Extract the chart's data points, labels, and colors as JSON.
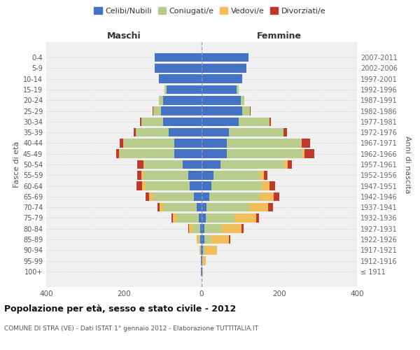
{
  "age_groups": [
    "100+",
    "95-99",
    "90-94",
    "85-89",
    "80-84",
    "75-79",
    "70-74",
    "65-69",
    "60-64",
    "55-59",
    "50-54",
    "45-49",
    "40-44",
    "35-39",
    "30-34",
    "25-29",
    "20-24",
    "15-19",
    "10-14",
    "5-9",
    "0-4"
  ],
  "birth_years": [
    "≤ 1911",
    "1912-1916",
    "1917-1921",
    "1922-1926",
    "1927-1931",
    "1932-1936",
    "1937-1941",
    "1942-1946",
    "1947-1951",
    "1952-1956",
    "1957-1961",
    "1962-1966",
    "1967-1971",
    "1972-1976",
    "1977-1981",
    "1982-1986",
    "1987-1991",
    "1992-1996",
    "1997-2001",
    "2002-2006",
    "2007-2011"
  ],
  "colors": {
    "celibi": "#4472c4",
    "coniugati": "#b8cc8c",
    "vedovi": "#f0be5a",
    "divorziati": "#c0392b"
  },
  "maschi": {
    "celibi": [
      1,
      1,
      2,
      3,
      4,
      8,
      12,
      20,
      30,
      35,
      48,
      70,
      70,
      85,
      100,
      105,
      100,
      90,
      110,
      120,
      120
    ],
    "coniugati": [
      0,
      0,
      2,
      5,
      20,
      55,
      85,
      105,
      115,
      115,
      100,
      140,
      130,
      85,
      55,
      20,
      10,
      5,
      0,
      0,
      0
    ],
    "vedovi": [
      0,
      0,
      2,
      5,
      8,
      10,
      12,
      10,
      8,
      5,
      2,
      2,
      2,
      0,
      0,
      0,
      0,
      0,
      0,
      0,
      0
    ],
    "divorziati": [
      0,
      0,
      0,
      0,
      2,
      5,
      5,
      10,
      15,
      10,
      15,
      8,
      8,
      4,
      4,
      2,
      0,
      0,
      0,
      0,
      0
    ]
  },
  "femmine": {
    "celibi": [
      1,
      2,
      4,
      8,
      8,
      10,
      12,
      20,
      25,
      30,
      48,
      65,
      65,
      70,
      95,
      105,
      100,
      90,
      105,
      115,
      120
    ],
    "coniugati": [
      0,
      0,
      5,
      18,
      45,
      75,
      110,
      130,
      130,
      120,
      165,
      195,
      190,
      140,
      80,
      20,
      10,
      5,
      0,
      0,
      0
    ],
    "vedovi": [
      2,
      8,
      30,
      45,
      50,
      55,
      50,
      35,
      20,
      10,
      8,
      5,
      2,
      0,
      0,
      0,
      0,
      0,
      0,
      0,
      0
    ],
    "divorziati": [
      0,
      0,
      0,
      2,
      5,
      8,
      12,
      15,
      15,
      10,
      12,
      25,
      22,
      10,
      4,
      2,
      0,
      0,
      0,
      0,
      0
    ]
  },
  "title": "Popolazione per età, sesso e stato civile - 2012",
  "subtitle": "COMUNE DI STRA (VE) - Dati ISTAT 1° gennaio 2012 - Elaborazione TUTTITALIA.IT",
  "xlabel_left": "Maschi",
  "xlabel_right": "Femmine",
  "ylabel_left": "Fasce di età",
  "ylabel_right": "Anni di nascita",
  "legend_labels": [
    "Celibi/Nubili",
    "Coniugati/e",
    "Vedovi/e",
    "Divorziati/e"
  ],
  "xlim": 400,
  "background_color": "#ffffff",
  "grid_color": "#cccccc"
}
